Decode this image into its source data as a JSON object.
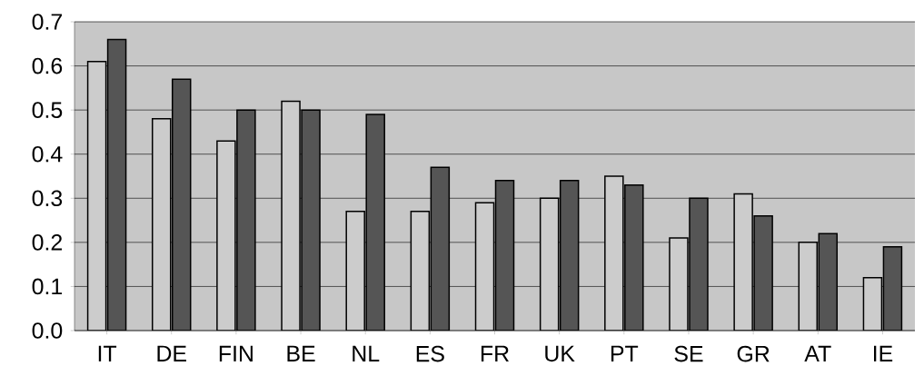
{
  "chart_data": {
    "type": "bar",
    "categories": [
      "IT",
      "DE",
      "FIN",
      "BE",
      "NL",
      "ES",
      "FR",
      "UK",
      "PT",
      "SE",
      "GR",
      "AT",
      "IE"
    ],
    "series": [
      {
        "color": "#cccccc",
        "values": [
          0.61,
          0.48,
          0.43,
          0.52,
          0.27,
          0.27,
          0.29,
          0.3,
          0.35,
          0.21,
          0.31,
          0.2,
          0.12
        ]
      },
      {
        "color": "#555555",
        "values": [
          0.66,
          0.57,
          0.5,
          0.5,
          0.49,
          0.37,
          0.34,
          0.34,
          0.33,
          0.3,
          0.26,
          0.22,
          0.19
        ]
      }
    ],
    "ylim": [
      0,
      0.7
    ],
    "yticks": [
      {
        "value": 0,
        "label": "0.0"
      },
      0.1,
      0.2,
      0.3,
      0.4,
      0.5,
      0.6,
      0.7
    ],
    "grid": "y"
  }
}
